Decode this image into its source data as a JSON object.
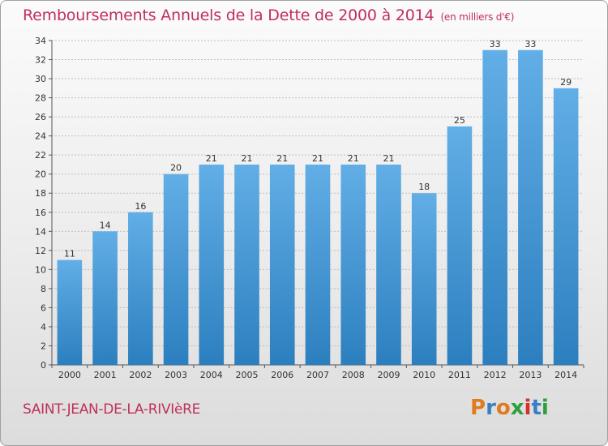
{
  "header": {
    "title": "Remboursements Annuels de la Dette de 2000 à 2014",
    "unit": "(en milliers d'€)"
  },
  "footer": {
    "commune": "SAINT-JEAN-DE-LA-RIVIèRE",
    "brand_letters": [
      "P",
      "r",
      "o",
      "x",
      "i",
      "t",
      "i"
    ],
    "brand_colors": [
      "#e07b1f",
      "#3a7fc4",
      "#e07b1f",
      "#2f9e3c",
      "#d6302c",
      "#3a7fc4",
      "#2f9e3c"
    ]
  },
  "colors": {
    "bar_light": "#62aee6",
    "bar_dark": "#2c7fbf",
    "accent": "#c0305a",
    "grid": "#bdbdbd"
  },
  "chart_data": {
    "type": "bar",
    "title": "Remboursements Annuels de la Dette de 2000 à 2014",
    "subtitle": "(en milliers d'€)",
    "xlabel": "",
    "ylabel": "",
    "categories": [
      "2000",
      "2001",
      "2002",
      "2003",
      "2004",
      "2005",
      "2006",
      "2007",
      "2008",
      "2009",
      "2010",
      "2011",
      "2012",
      "2013",
      "2014"
    ],
    "values": [
      11,
      14,
      16,
      20,
      21,
      21,
      21,
      21,
      21,
      21,
      18,
      25,
      33,
      33,
      29
    ],
    "ylim": [
      0,
      34
    ],
    "yticks": [
      "0",
      "2",
      "4",
      "6",
      "8",
      "10",
      "12",
      "14",
      "16",
      "18",
      "20",
      "22",
      "24",
      "26",
      "28",
      "30",
      "32",
      "34"
    ],
    "grid": true
  }
}
